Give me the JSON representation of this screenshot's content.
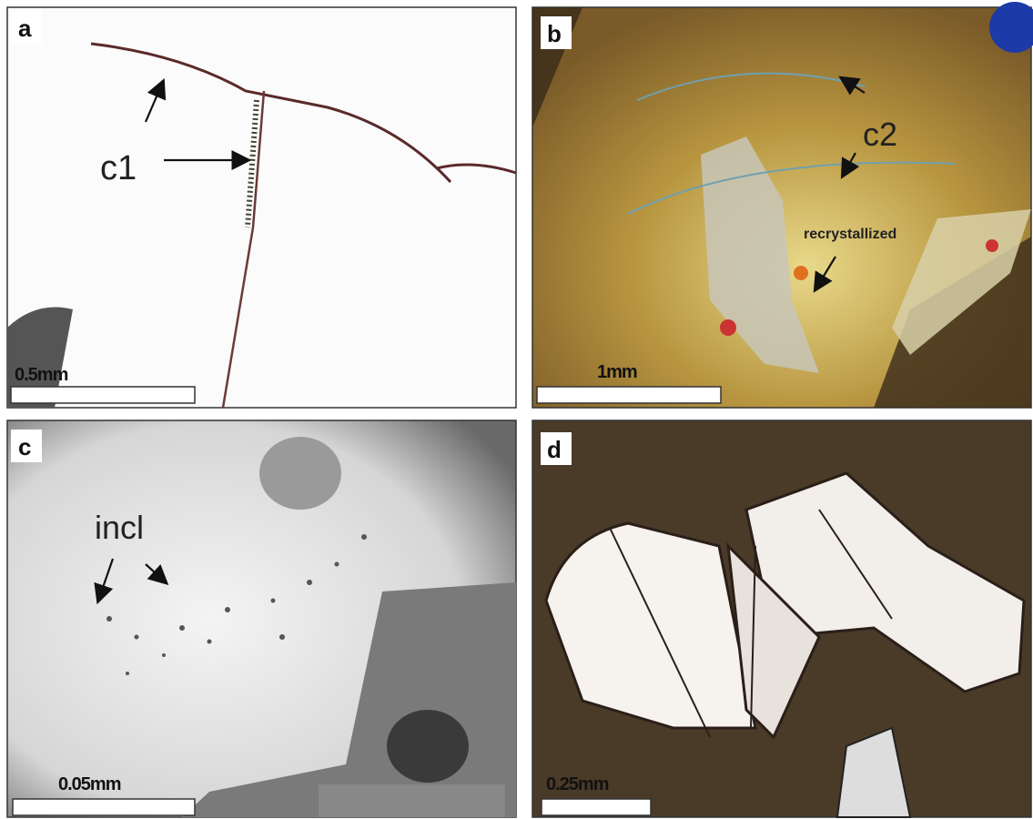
{
  "panels": [
    {
      "label": "a",
      "annotations": [
        "c1"
      ],
      "scale": "0.5mm"
    },
    {
      "label": "b",
      "annotations": [
        "c2",
        "recrystallized"
      ],
      "scale": "1mm"
    },
    {
      "label": "c",
      "annotations": [
        "incl"
      ],
      "scale": "0.05mm"
    },
    {
      "label": "d",
      "scale": "0.25mm"
    }
  ]
}
